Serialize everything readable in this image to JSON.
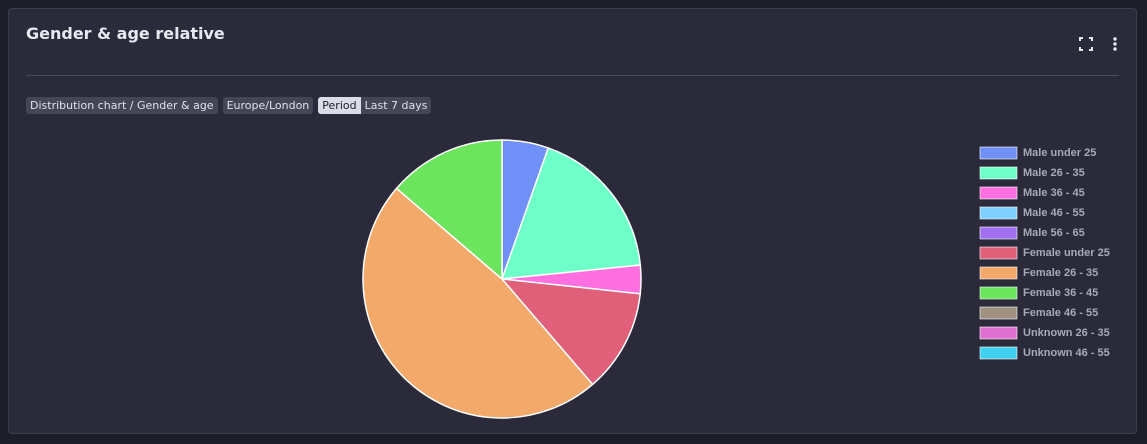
{
  "header": {
    "title": "Gender & age relative"
  },
  "filters": [
    "Distribution chart / Gender & age",
    "Europe/London",
    "Period",
    "Last 7 days"
  ],
  "chart_data": {
    "type": "pie",
    "categories": [
      "Male under 25",
      "Male 26 - 35",
      "Male 36 - 45",
      "Male 46 - 55",
      "Male 56 - 65",
      "Female under 25",
      "Female 26 - 35",
      "Female 36 - 45",
      "Female 46 - 55",
      "Unknown 26 - 35",
      "Unknown 46 - 55"
    ],
    "values": [
      5.4,
      18.0,
      3.3,
      0,
      0,
      12.0,
      47.6,
      13.7,
      0,
      0,
      0
    ],
    "colors": [
      "#7090f8",
      "#6fffc8",
      "#ff6fe0",
      "#7fd0ff",
      "#a070f0",
      "#e0607a",
      "#f2a96a",
      "#6ce45e",
      "#a09080",
      "#e070d0",
      "#40d0f0"
    ],
    "legend": "right"
  }
}
